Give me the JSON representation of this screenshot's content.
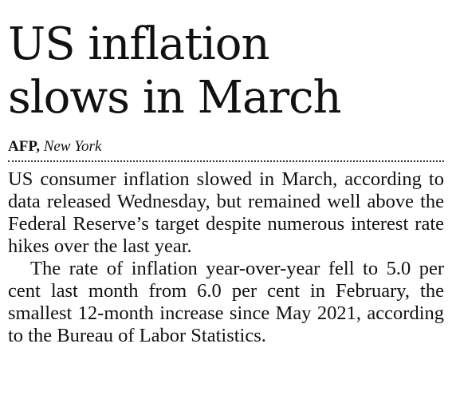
{
  "article": {
    "headline_line1": "US inflation",
    "headline_line2": "slows in March",
    "byline": {
      "agency": "AFP,",
      "location": "New York"
    },
    "paragraphs": [
      "US consumer inflation slowed in March, according to data released Wednesday, but remained well above the Federal Reserve’s target despite numerous interest rate hikes over the last year.",
      "The rate of inflation year-over-year fell to 5.0 per cent last month from 6.0 per cent in February, the smallest 12-month increase since May 2021, according to the Bureau of Labor Statistics."
    ]
  }
}
